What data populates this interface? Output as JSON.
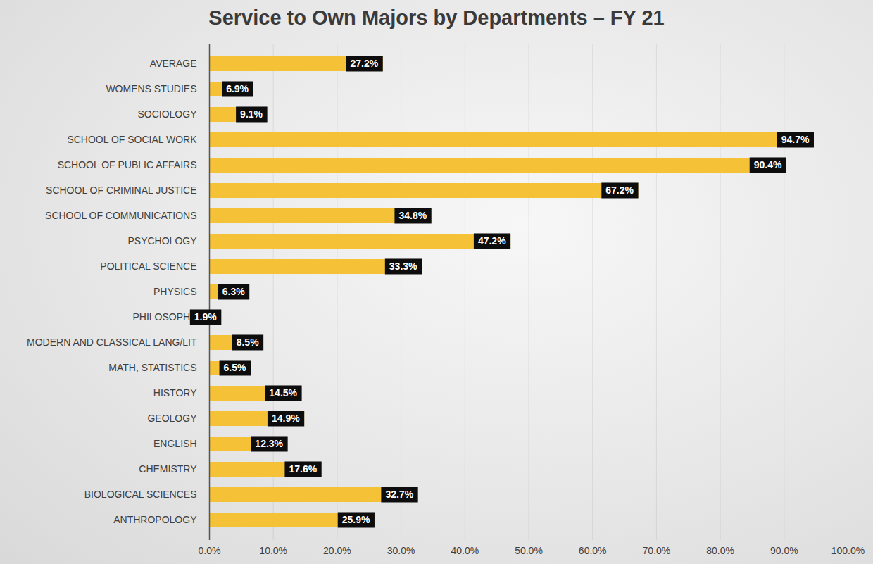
{
  "chart_data": {
    "type": "bar",
    "orientation": "horizontal",
    "title": "Service to Own Majors by Departments – FY 21",
    "categories": [
      "AVERAGE",
      "WOMENS STUDIES",
      "SOCIOLOGY",
      "SCHOOL OF SOCIAL WORK",
      "SCHOOL OF PUBLIC AFFAIRS",
      "SCHOOL OF CRIMINAL JUSTICE",
      "SCHOOL OF COMMUNICATIONS",
      "PSYCHOLOGY",
      "POLITICAL SCIENCE",
      "PHYSICS",
      "PHILOSOPHY",
      "MODERN AND CLASSICAL LANG/LIT",
      "MATH, STATISTICS",
      "HISTORY",
      "GEOLOGY",
      "ENGLISH",
      "CHEMISTRY",
      "BIOLOGICAL SCIENCES",
      "ANTHROPOLOGY"
    ],
    "values": [
      27.2,
      6.9,
      9.1,
      94.7,
      90.4,
      67.2,
      34.8,
      47.2,
      33.3,
      6.3,
      1.9,
      8.5,
      6.5,
      14.5,
      14.9,
      12.3,
      17.6,
      32.7,
      25.9
    ],
    "value_labels": [
      "27.2%",
      "6.9%",
      "9.1%",
      "94.7%",
      "90.4%",
      "67.2%",
      "34.8%",
      "47.2%",
      "33.3%",
      "6.3%",
      "1.9%",
      "8.5%",
      "6.5%",
      "14.5%",
      "14.9%",
      "12.3%",
      "17.6%",
      "32.7%",
      "25.9%"
    ],
    "color": "#f5c136",
    "xlim": [
      0,
      100
    ],
    "xticks": [
      {
        "value": 0,
        "label": "0.0%"
      },
      {
        "value": 10,
        "label": "10.0%"
      },
      {
        "value": 20,
        "label": "20.0%"
      },
      {
        "value": 30,
        "label": "30.0%"
      },
      {
        "value": 40,
        "label": "40.0%"
      },
      {
        "value": 50,
        "label": "50.0%"
      },
      {
        "value": 60,
        "label": "60.0%"
      },
      {
        "value": 70,
        "label": "70.0%"
      },
      {
        "value": 80,
        "label": "80.0%"
      },
      {
        "value": 90,
        "label": "90.0%"
      },
      {
        "value": 100,
        "label": "100.0%"
      }
    ],
    "grid": true,
    "data_labels": true
  }
}
